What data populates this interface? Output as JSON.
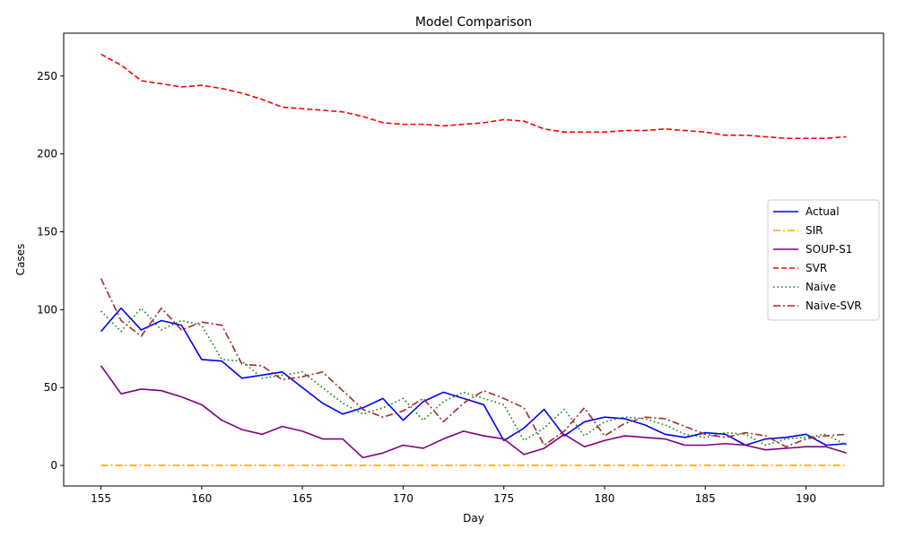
{
  "chart_data": {
    "type": "line",
    "title": "Model Comparison",
    "xlabel": "Day",
    "ylabel": "Cases",
    "xlim": [
      153.15,
      193.85
    ],
    "ylim": [
      -13.2,
      277.5
    ],
    "xticks": [
      155,
      160,
      165,
      170,
      175,
      180,
      185,
      190
    ],
    "yticks": [
      0,
      50,
      100,
      150,
      200,
      250
    ],
    "grid": false,
    "legend_position": "center-right",
    "x": [
      155,
      156,
      157,
      158,
      159,
      160,
      161,
      162,
      163,
      164,
      165,
      166,
      167,
      168,
      169,
      170,
      171,
      172,
      173,
      174,
      175,
      176,
      177,
      178,
      179,
      180,
      181,
      182,
      183,
      184,
      185,
      186,
      187,
      188,
      189,
      190,
      191,
      192
    ],
    "series": [
      {
        "name": "Actual",
        "color": "#0000ff",
        "dash": "solid",
        "values": [
          86,
          101,
          87,
          93,
          90,
          68,
          67,
          56,
          58,
          60,
          50,
          40,
          33,
          37,
          43,
          29,
          41,
          47,
          43,
          39,
          16,
          24,
          36,
          19,
          28,
          31,
          30,
          26,
          20,
          18,
          21,
          20,
          13,
          17,
          18,
          20,
          13,
          14
        ]
      },
      {
        "name": "SIR",
        "color": "#ffa500",
        "dash": "dashdot",
        "values": [
          0,
          0,
          0,
          0,
          0,
          0,
          0,
          0,
          0,
          0,
          0,
          0,
          0,
          0,
          0,
          0,
          0,
          0,
          0,
          0,
          0,
          0,
          0,
          0,
          0,
          0,
          0,
          0,
          0,
          0,
          0,
          0,
          0,
          0,
          0,
          0,
          0,
          0
        ]
      },
      {
        "name": "SOUP-S1",
        "color": "#800080",
        "dash": "solid",
        "values": [
          64,
          46,
          49,
          48,
          44,
          39,
          29,
          23,
          20,
          25,
          22,
          17,
          17,
          5,
          8,
          13,
          11,
          17,
          22,
          19,
          17,
          7,
          11,
          20,
          12,
          16,
          19,
          18,
          17,
          13,
          13,
          14,
          13,
          10,
          11,
          12,
          12,
          8
        ]
      },
      {
        "name": "SVR",
        "color": "#ff0000",
        "dash": "dashed",
        "values": [
          264,
          257,
          247,
          245,
          243,
          244,
          242,
          239,
          235,
          230,
          229,
          228,
          227,
          224,
          220,
          219,
          219,
          218,
          219,
          220,
          222,
          221,
          216,
          214,
          214,
          214,
          215,
          215,
          216,
          215,
          214,
          212,
          212,
          211,
          210,
          210,
          210,
          211
        ]
      },
      {
        "name": "Naive",
        "color": "#008000",
        "dash": "dotted",
        "values": [
          99,
          86,
          101,
          87,
          93,
          90,
          68,
          67,
          56,
          58,
          60,
          50,
          40,
          33,
          37,
          43,
          29,
          41,
          47,
          43,
          39,
          16,
          24,
          36,
          19,
          28,
          31,
          30,
          26,
          20,
          18,
          21,
          20,
          13,
          17,
          18,
          20,
          13
        ]
      },
      {
        "name": "Naive-SVR",
        "color": "#a52a2a",
        "dash": "dashdot",
        "values": [
          120,
          93,
          83,
          101,
          87,
          92,
          90,
          65,
          64,
          55,
          57,
          60,
          48,
          36,
          31,
          35,
          43,
          28,
          40,
          48,
          43,
          37,
          13,
          22,
          37,
          19,
          27,
          31,
          30,
          25,
          20,
          18,
          21,
          19,
          12,
          17,
          19,
          20
        ]
      }
    ]
  }
}
